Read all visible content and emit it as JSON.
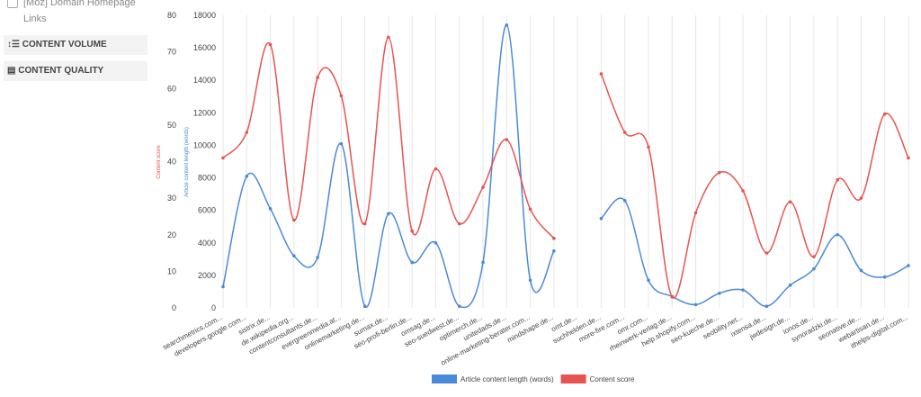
{
  "sidebar": {
    "checkbox_label": "[Moz] Domain Homepage Links",
    "buttons": [
      "CONTENT VOLUME",
      "CONTENT QUALITY"
    ]
  },
  "chart_data": {
    "type": "line",
    "y_label": "Content score",
    "y2_label": "Article content length (words)",
    "categories": [
      "searchmetrics.com...",
      "developers.google.com...",
      "sistrix.de...",
      "de.wikipedia.org...",
      "contentconsultants.de...",
      "evergreenmedia.at...",
      "onlinemarketing.de...",
      "sumax.de...",
      "seo-profi-berlin.de...",
      "omsag.de...",
      "seo-suedwest.de...",
      "optimerch.de...",
      "unitedads.de...",
      "online-marketing-berater.com...",
      "mindshape.de...",
      "omt.de...",
      "suchhelden.de...",
      "more-fire.com...",
      "omr.com...",
      "rheinwerk-verlag.de...",
      "help.shopify.com...",
      "seo-kueche.de...",
      "seobility.net...",
      "ixtensa.de...",
      "jwdesign.de...",
      "ionos.de...",
      "synoradzki.de...",
      "seonative.de...",
      "webartisan.de...",
      "ithelps-digital.com..."
    ],
    "series": [
      {
        "name": "Article content length (words)",
        "color": "#4a8ad8",
        "axis": "y2",
        "values": [
          1300,
          8100,
          6100,
          3200,
          3100,
          10100,
          100,
          5800,
          2800,
          4000,
          100,
          2800,
          17400,
          1700,
          3500,
          null,
          5500,
          6600,
          1700,
          700,
          200,
          900,
          1100,
          100,
          1400,
          2400,
          4500,
          2300,
          1900,
          2600
        ]
      },
      {
        "name": "Content score",
        "color": "#e8534f",
        "values": [
          41,
          48,
          72,
          24,
          63,
          58,
          23,
          74,
          21,
          38,
          23,
          33,
          46,
          27,
          19,
          null,
          64,
          48,
          44,
          3,
          26,
          37,
          32,
          15,
          29,
          14,
          35,
          30,
          53,
          41
        ]
      }
    ],
    "ylim": [
      0,
      80
    ],
    "yticks": [
      0,
      10,
      20,
      30,
      40,
      50,
      60,
      70,
      80
    ],
    "y2lim": [
      0,
      18000
    ],
    "y2ticks": [
      0,
      2000,
      4000,
      6000,
      8000,
      10000,
      12000,
      14000,
      16000,
      18000
    ],
    "grid": true,
    "legend": "bottom"
  }
}
